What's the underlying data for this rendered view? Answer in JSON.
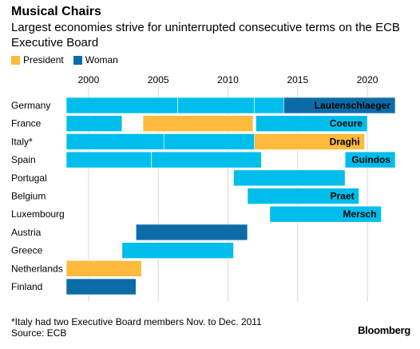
{
  "header": {
    "title": "Musical Chairs",
    "subtitle": "Largest economies strive for uninterrupted consecutive terms on the ECB Executive Board"
  },
  "legend": [
    {
      "label": "President",
      "color": "#FDBA3D"
    },
    {
      "label": "Woman",
      "color": "#0C6CA8"
    }
  ],
  "footer": {
    "footnote": "*Italy had two Executive Board members Nov. to Dec. 2011",
    "source": "Source: ECB",
    "brand": "Bloomberg"
  },
  "chart_data": {
    "type": "timeline",
    "xlim": [
      1998.4,
      2022.4
    ],
    "xticks": [
      2000,
      2005,
      2010,
      2015,
      2020
    ],
    "grid": true,
    "legend_position": "top-left",
    "colors": {
      "default": "#00BEEB",
      "president": "#FDBA3D",
      "woman": "#0C6CA8"
    },
    "rows": [
      {
        "country": "Germany",
        "terms": [
          {
            "start": 1998.4,
            "end": 2006.4,
            "kind": "default",
            "label": ""
          },
          {
            "start": 2006.4,
            "end": 2011.9,
            "kind": "default",
            "label": ""
          },
          {
            "start": 2011.9,
            "end": 2014.0,
            "kind": "default",
            "label": ""
          },
          {
            "start": 2014.0,
            "end": 2022.0,
            "kind": "woman",
            "label": "Lautenschlaeger"
          }
        ]
      },
      {
        "country": "France",
        "terms": [
          {
            "start": 1998.4,
            "end": 2002.4,
            "kind": "default",
            "label": ""
          },
          {
            "start": 2003.9,
            "end": 2011.8,
            "kind": "president",
            "label": ""
          },
          {
            "start": 2012.0,
            "end": 2020.0,
            "kind": "default",
            "label": "Coeure"
          }
        ]
      },
      {
        "country": "Italy*",
        "terms": [
          {
            "start": 1998.4,
            "end": 2005.4,
            "kind": "default",
            "label": ""
          },
          {
            "start": 2005.4,
            "end": 2011.9,
            "kind": "default",
            "label": ""
          },
          {
            "start": 2011.9,
            "end": 2019.8,
            "kind": "president",
            "label": "Draghi"
          }
        ]
      },
      {
        "country": "Spain",
        "terms": [
          {
            "start": 1998.4,
            "end": 2004.5,
            "kind": "default",
            "label": ""
          },
          {
            "start": 2004.5,
            "end": 2012.4,
            "kind": "default",
            "label": ""
          },
          {
            "start": 2018.4,
            "end": 2022.0,
            "kind": "default",
            "label": "Guindos"
          }
        ]
      },
      {
        "country": "Portugal",
        "terms": [
          {
            "start": 2010.4,
            "end": 2018.4,
            "kind": "default",
            "label": ""
          }
        ]
      },
      {
        "country": "Belgium",
        "terms": [
          {
            "start": 2011.4,
            "end": 2019.4,
            "kind": "default",
            "label": "Praet"
          }
        ]
      },
      {
        "country": "Luxembourg",
        "terms": [
          {
            "start": 2013.0,
            "end": 2021.0,
            "kind": "default",
            "label": "Mersch"
          }
        ]
      },
      {
        "country": "Austria",
        "terms": [
          {
            "start": 2003.4,
            "end": 2011.4,
            "kind": "woman",
            "label": ""
          }
        ]
      },
      {
        "country": "Greece",
        "terms": [
          {
            "start": 2002.4,
            "end": 2010.4,
            "kind": "default",
            "label": ""
          }
        ]
      },
      {
        "country": "Netherlands",
        "terms": [
          {
            "start": 1998.4,
            "end": 2003.8,
            "kind": "president",
            "label": ""
          }
        ]
      },
      {
        "country": "Finland",
        "terms": [
          {
            "start": 1998.4,
            "end": 2003.4,
            "kind": "woman",
            "label": ""
          }
        ]
      }
    ]
  }
}
